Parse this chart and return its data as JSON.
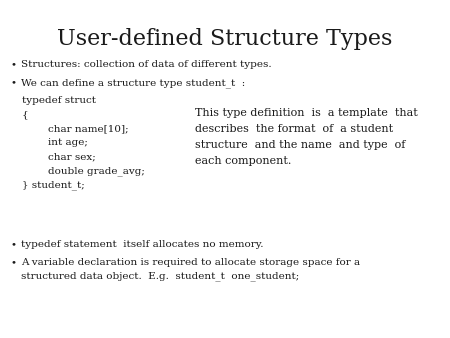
{
  "title": "User-defined Structure Types",
  "background_color": "#ffffff",
  "text_color": "#1a1a1a",
  "bullet1": "Structures: collection of data of different types.",
  "bullet2": "We can define a structure type student_t  :",
  "code_line1": "typedef struct",
  "code_line2": "{",
  "code_line3": "        char name[10];",
  "code_line4": "        int age;",
  "code_line5": "        char sex;",
  "code_line6": "        double grade_avg;",
  "code_line7": "} student_t;",
  "note_line1": "This type definition  is  a template  that",
  "note_line2": "describes  the format  of  a student",
  "note_line3": "structure  and the name  and type  of",
  "note_line4": "each component.",
  "bullet3": "typedef statement  itself allocates no memory.",
  "bullet4a": "A variable declaration is required to allocate storage space for a",
  "bullet4b": "structured data object.  E.g.  student_t  one_student;",
  "title_fontsize": 16,
  "body_fontsize": 7.5,
  "code_fontsize": 7.5,
  "note_fontsize": 8.0
}
